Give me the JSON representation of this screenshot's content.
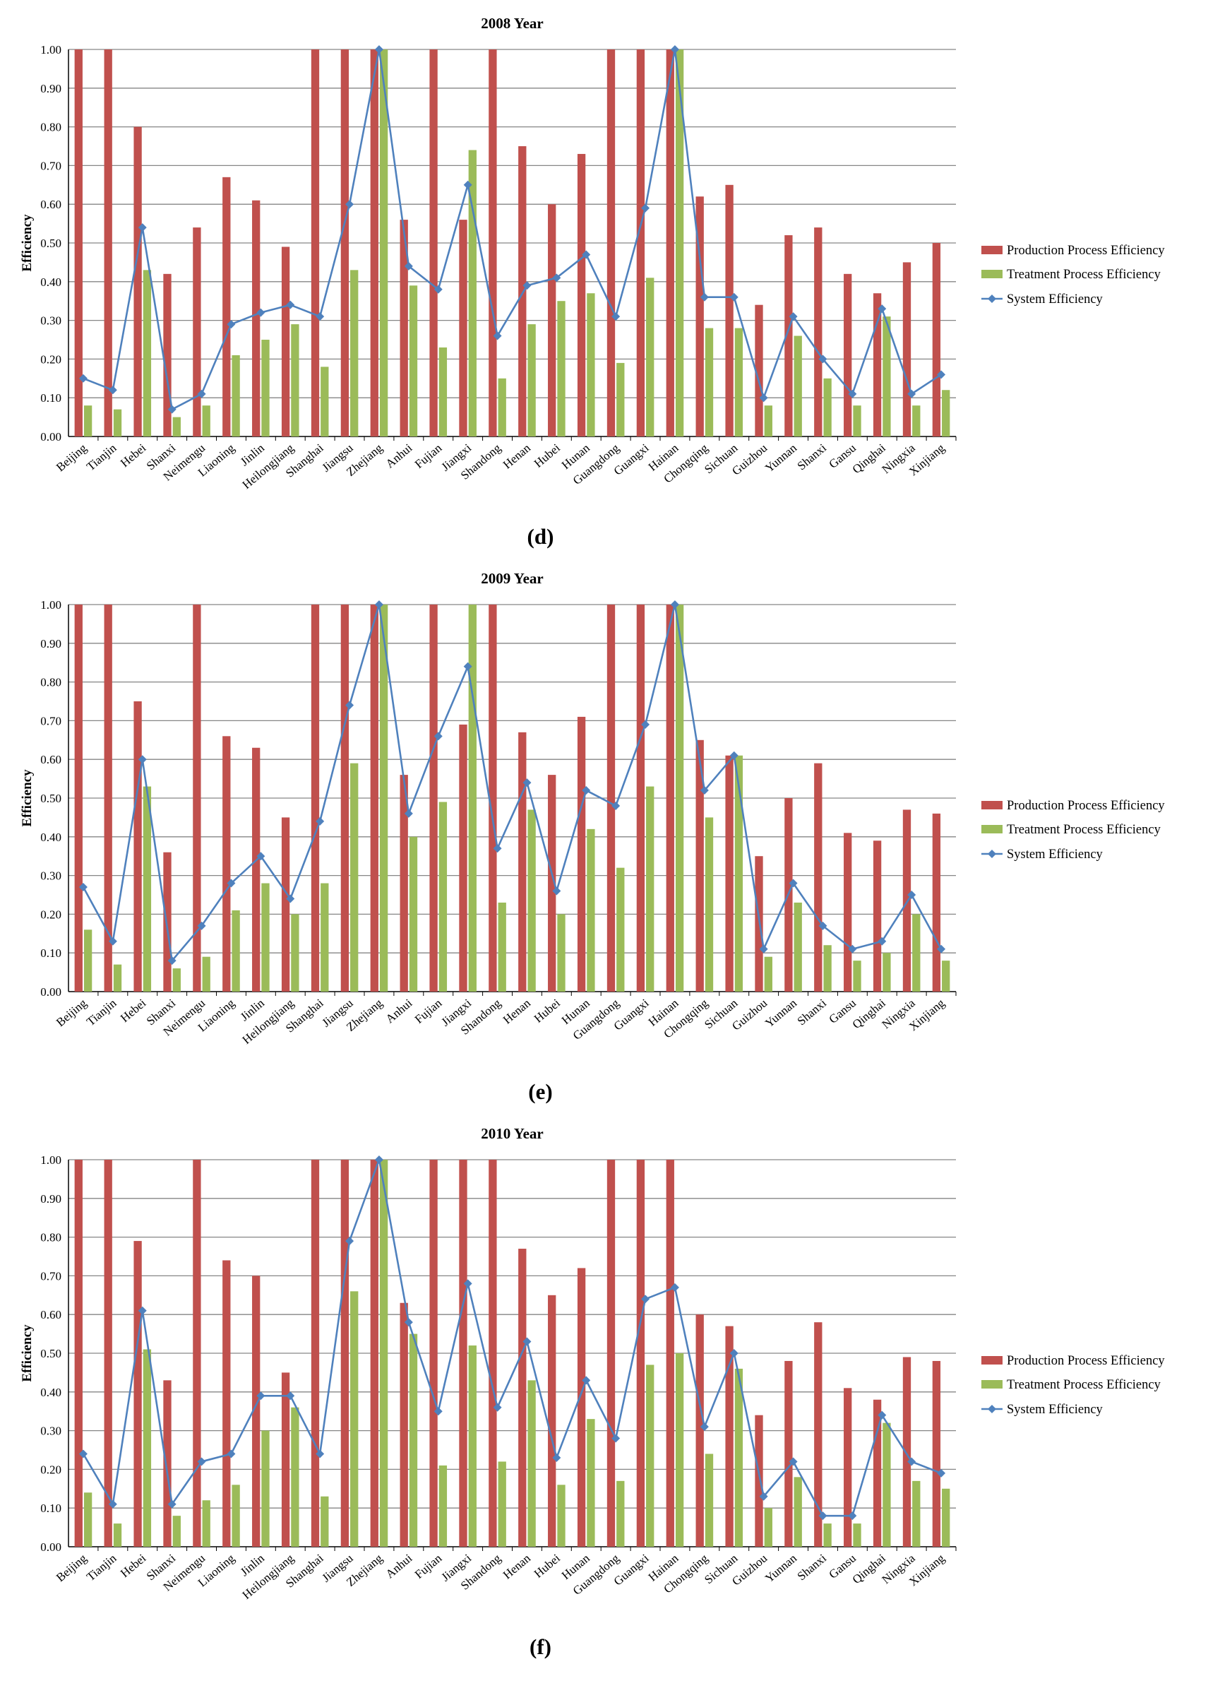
{
  "legend": {
    "production": "Production Process Efficiency",
    "treatment": "Treatment Process Efficiency",
    "system": "System Efficiency"
  },
  "colors": {
    "production": "#c0504d",
    "treatment": "#9bbb59",
    "system": "#4f81bd",
    "grid": "#868686",
    "axis": "#000000"
  },
  "chart_data": [
    {
      "type": "bar",
      "title": "2008 Year",
      "caption": "(d)",
      "caption_letter": "d",
      "ylabel": "Efficiency",
      "xlabel": "",
      "ylim": [
        0,
        1
      ],
      "yticks": [
        "0.00",
        "0.10",
        "0.20",
        "0.30",
        "0.40",
        "0.50",
        "0.60",
        "0.70",
        "0.80",
        "0.90",
        "1.00"
      ],
      "grid": true,
      "legend_position": "right",
      "categories": [
        "Beijing",
        "Tianjin",
        "Hebei",
        "Shanxi",
        "Neimengu",
        "Liaoning",
        "Jinlin",
        "Heilongjiang",
        "Shanghai",
        "Jiangsu",
        "Zhejiang",
        "Anhui",
        "Fujian",
        "Jiangxi",
        "Shandong",
        "Henan",
        "Hubei",
        "Hunan",
        "Guangdong",
        "Guangxi",
        "Hainan",
        "Chongqing",
        "Sichuan",
        "Guizhou",
        "Yunnan",
        "Shanxi",
        "Gansu",
        "Qinghai",
        "Ningxia",
        "Xinjiang"
      ],
      "series": [
        {
          "name": "Production Process Efficiency",
          "kind": "bar",
          "values": [
            1.0,
            1.0,
            0.8,
            0.42,
            0.54,
            0.67,
            0.61,
            0.49,
            1.0,
            1.0,
            1.0,
            0.56,
            1.0,
            0.56,
            1.0,
            0.75,
            0.6,
            0.73,
            1.0,
            1.0,
            1.0,
            0.62,
            0.65,
            0.34,
            0.52,
            0.54,
            0.42,
            0.37,
            0.45,
            0.5
          ]
        },
        {
          "name": "Treatment Process Efficiency",
          "kind": "bar",
          "values": [
            0.08,
            0.07,
            0.43,
            0.05,
            0.08,
            0.21,
            0.25,
            0.29,
            0.18,
            0.43,
            1.0,
            0.39,
            0.23,
            0.74,
            0.15,
            0.29,
            0.35,
            0.37,
            0.19,
            0.41,
            1.0,
            0.28,
            0.28,
            0.08,
            0.26,
            0.15,
            0.08,
            0.31,
            0.08,
            0.12
          ]
        },
        {
          "name": "System Efficiency",
          "kind": "line",
          "values": [
            0.15,
            0.12,
            0.54,
            0.07,
            0.11,
            0.29,
            0.32,
            0.34,
            0.31,
            0.6,
            1.0,
            0.44,
            0.38,
            0.65,
            0.26,
            0.39,
            0.41,
            0.47,
            0.31,
            0.59,
            1.0,
            0.36,
            0.36,
            0.1,
            0.31,
            0.2,
            0.11,
            0.33,
            0.11,
            0.16
          ]
        }
      ]
    },
    {
      "type": "bar",
      "title": "2009 Year",
      "caption": "(e)",
      "caption_letter": "e",
      "ylabel": "Efficiency",
      "xlabel": "",
      "ylim": [
        0,
        1
      ],
      "yticks": [
        "0.00",
        "0.10",
        "0.20",
        "0.30",
        "0.40",
        "0.50",
        "0.60",
        "0.70",
        "0.80",
        "0.90",
        "1.00"
      ],
      "grid": true,
      "legend_position": "right",
      "categories": [
        "Beijing",
        "Tianjin",
        "Hebei",
        "Shanxi",
        "Neimengu",
        "Liaoning",
        "Jinlin",
        "Heilongjiang",
        "Shanghai",
        "Jiangsu",
        "Zhejiang",
        "Anhui",
        "Fujian",
        "Jiangxi",
        "Shandong",
        "Henan",
        "Hubei",
        "Hunan",
        "Guangdong",
        "Guangxi",
        "Hainan",
        "Chongqing",
        "Sichuan",
        "Guizhou",
        "Yunnan",
        "Shanxi",
        "Gansu",
        "Qinghai",
        "Ningxia",
        "Xinjiang"
      ],
      "series": [
        {
          "name": "Production Process Efficiency",
          "kind": "bar",
          "values": [
            1.0,
            1.0,
            0.75,
            0.36,
            1.0,
            0.66,
            0.63,
            0.45,
            1.0,
            1.0,
            1.0,
            0.56,
            1.0,
            0.69,
            1.0,
            0.67,
            0.56,
            0.71,
            1.0,
            1.0,
            1.0,
            0.65,
            0.61,
            0.35,
            0.5,
            0.59,
            0.41,
            0.39,
            0.47,
            0.46
          ]
        },
        {
          "name": "Treatment Process Efficiency",
          "kind": "bar",
          "values": [
            0.16,
            0.07,
            0.53,
            0.06,
            0.09,
            0.21,
            0.28,
            0.2,
            0.28,
            0.59,
            1.0,
            0.4,
            0.49,
            1.0,
            0.23,
            0.47,
            0.2,
            0.42,
            0.32,
            0.53,
            1.0,
            0.45,
            0.61,
            0.09,
            0.23,
            0.12,
            0.08,
            0.1,
            0.2,
            0.08
          ]
        },
        {
          "name": "System Efficiency",
          "kind": "line",
          "values": [
            0.27,
            0.13,
            0.6,
            0.08,
            0.17,
            0.28,
            0.35,
            0.24,
            0.44,
            0.74,
            1.0,
            0.46,
            0.66,
            0.84,
            0.37,
            0.54,
            0.26,
            0.52,
            0.48,
            0.69,
            1.0,
            0.52,
            0.61,
            0.11,
            0.28,
            0.17,
            0.11,
            0.13,
            0.25,
            0.11
          ]
        }
      ]
    },
    {
      "type": "bar",
      "title": "2010 Year",
      "caption": "(f)",
      "caption_letter": "f",
      "ylabel": "Efficiency",
      "xlabel": "",
      "ylim": [
        0,
        1
      ],
      "yticks": [
        "0.00",
        "0.10",
        "0.20",
        "0.30",
        "0.40",
        "0.50",
        "0.60",
        "0.70",
        "0.80",
        "0.90",
        "1.00"
      ],
      "grid": true,
      "legend_position": "right",
      "categories": [
        "Beijing",
        "Tianjin",
        "Hebei",
        "Shanxi",
        "Neimengu",
        "Liaoning",
        "Jinlin",
        "Heilongjiang",
        "Shanghai",
        "Jiangsu",
        "Zhejiang",
        "Anhui",
        "Fujian",
        "Jiangxi",
        "Shandong",
        "Henan",
        "Hubei",
        "Hunan",
        "Guangdong",
        "Guangxi",
        "Hainan",
        "Chongqing",
        "Sichuan",
        "Guizhou",
        "Yunnan",
        "Shanxi",
        "Gansu",
        "Qinghai",
        "Ningxia",
        "Xinjiang"
      ],
      "series": [
        {
          "name": "Production Process Efficiency",
          "kind": "bar",
          "values": [
            1.0,
            1.0,
            0.79,
            0.43,
            1.0,
            0.74,
            0.7,
            0.45,
            1.0,
            1.0,
            1.0,
            0.63,
            1.0,
            1.0,
            1.0,
            0.77,
            0.65,
            0.72,
            1.0,
            1.0,
            1.0,
            0.6,
            0.57,
            0.34,
            0.48,
            0.58,
            0.41,
            0.38,
            0.49,
            0.48
          ]
        },
        {
          "name": "Treatment Process Efficiency",
          "kind": "bar",
          "values": [
            0.14,
            0.06,
            0.51,
            0.08,
            0.12,
            0.16,
            0.3,
            0.36,
            0.13,
            0.66,
            1.0,
            0.55,
            0.21,
            0.52,
            0.22,
            0.43,
            0.16,
            0.33,
            0.17,
            0.47,
            0.5,
            0.24,
            0.46,
            0.1,
            0.18,
            0.06,
            0.06,
            0.32,
            0.17,
            0.15
          ]
        },
        {
          "name": "System Efficiency",
          "kind": "line",
          "values": [
            0.24,
            0.11,
            0.61,
            0.11,
            0.22,
            0.24,
            0.39,
            0.39,
            0.24,
            0.79,
            1.0,
            0.58,
            0.35,
            0.68,
            0.36,
            0.53,
            0.23,
            0.43,
            0.28,
            0.64,
            0.67,
            0.31,
            0.5,
            0.13,
            0.22,
            0.08,
            0.08,
            0.34,
            0.22,
            0.19
          ]
        }
      ]
    }
  ]
}
